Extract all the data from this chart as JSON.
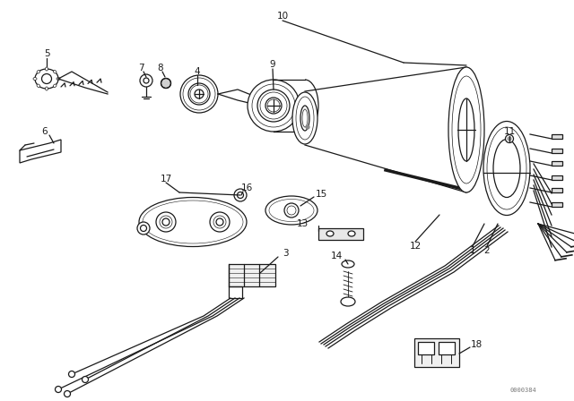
{
  "bg_color": "#ffffff",
  "line_color": "#1a1a1a",
  "part_number_text": "0000384",
  "lw": 0.9
}
